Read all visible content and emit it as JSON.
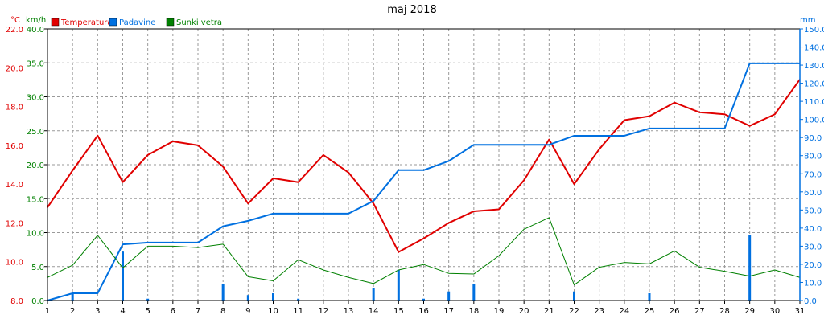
{
  "chart_data": {
    "type": "line",
    "title": "maj 2018",
    "x": [
      1,
      2,
      3,
      4,
      5,
      6,
      7,
      8,
      9,
      10,
      11,
      12,
      13,
      14,
      15,
      16,
      17,
      18,
      19,
      20,
      21,
      22,
      23,
      24,
      25,
      26,
      27,
      28,
      29,
      30,
      31
    ],
    "xlim": [
      1,
      31
    ],
    "grid": true,
    "legend_position": "top-left",
    "axes": {
      "temp": {
        "unit": "°C",
        "min": 8.0,
        "max": 22.0,
        "ticks": [
          "8.0",
          "10.0",
          "12.0",
          "14.0",
          "16.0",
          "18.0",
          "20.0",
          "22.0"
        ],
        "color": "#e00000"
      },
      "wind": {
        "unit": "km/h",
        "min": 0.0,
        "max": 40.0,
        "ticks": [
          "0.0",
          "5.0",
          "10.0",
          "15.0",
          "20.0",
          "25.0",
          "30.0",
          "35.0",
          "40.0"
        ],
        "color": "#008000"
      },
      "precip": {
        "unit": "mm",
        "min": 0.0,
        "max": 150.0,
        "ticks": [
          "0.0",
          "10.0",
          "20.0",
          "30.0",
          "40.0",
          "50.0",
          "60.0",
          "70.0",
          "80.0",
          "90.0",
          "100.0",
          "110.0",
          "120.0",
          "130.0",
          "140.0",
          "150.0"
        ],
        "color": "#0070e0"
      }
    },
    "series": [
      {
        "name": "Temperatura",
        "axis": "temp",
        "color": "#e00000",
        "values": [
          12.8,
          14.7,
          16.5,
          14.1,
          15.5,
          16.2,
          16.0,
          14.9,
          13.0,
          14.3,
          14.1,
          15.5,
          14.6,
          13.0,
          10.5,
          11.2,
          12.0,
          12.6,
          12.7,
          14.2,
          16.3,
          14.0,
          15.8,
          17.3,
          17.5,
          18.2,
          17.7,
          17.6,
          17.0,
          17.6,
          19.4
        ]
      },
      {
        "name": "Padavine",
        "axis": "precip",
        "color": "#0070e0",
        "values": [
          0,
          4,
          4,
          31,
          32,
          32,
          32,
          41,
          44,
          48,
          48,
          48,
          48,
          55,
          72,
          72,
          77,
          86,
          86,
          86,
          86,
          91,
          91,
          91,
          95,
          95,
          95,
          95,
          131,
          131,
          131
        ]
      },
      {
        "name": "Sunki vetra",
        "axis": "wind",
        "color": "#008000",
        "values": [
          3.4,
          5.2,
          9.6,
          4.8,
          8.0,
          8.0,
          7.8,
          8.3,
          3.5,
          2.9,
          6.0,
          4.5,
          3.4,
          2.5,
          4.5,
          5.3,
          4.0,
          3.9,
          6.6,
          10.5,
          12.2,
          2.3,
          4.9,
          5.6,
          5.4,
          7.3,
          4.9,
          4.3,
          3.6,
          4.5,
          3.4
        ]
      }
    ],
    "bars": {
      "name": "Padavine (dnevne)",
      "axis": "precip",
      "color": "#0070e0",
      "days": [
        2,
        4,
        5,
        8,
        9,
        10,
        11,
        14,
        15,
        16,
        17,
        18,
        22,
        25,
        29
      ],
      "values": [
        4,
        27,
        1,
        9,
        3,
        4,
        1,
        7,
        17,
        1,
        5,
        9,
        5,
        4,
        36
      ]
    }
  }
}
